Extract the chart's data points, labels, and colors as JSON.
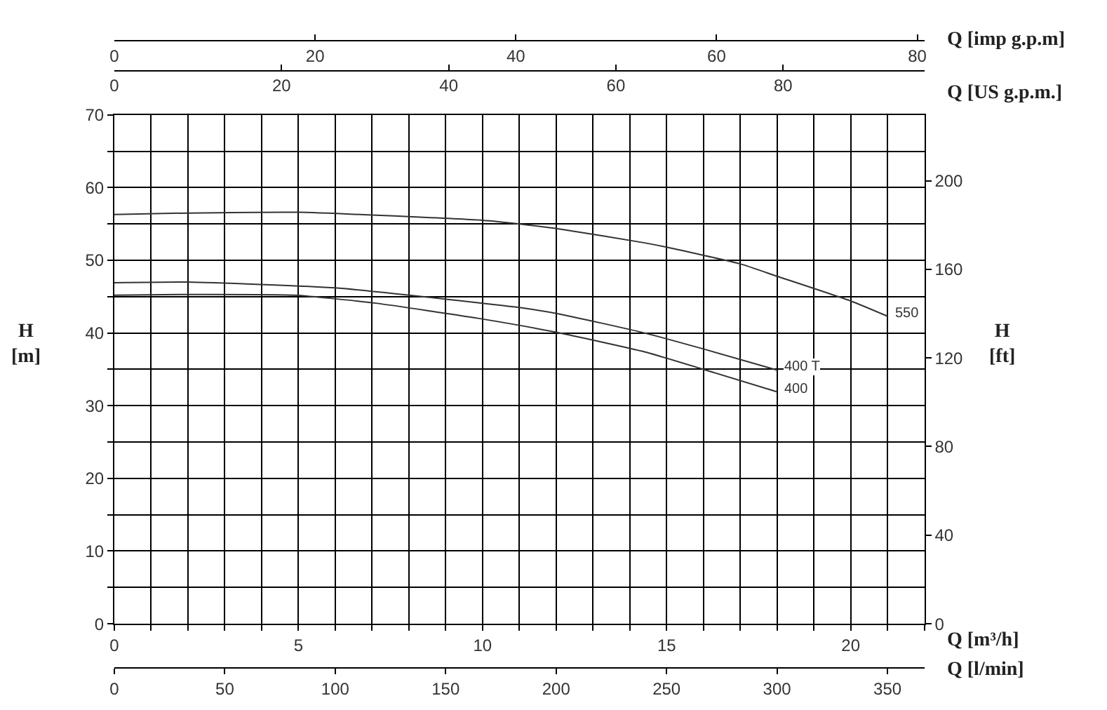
{
  "chart_data": [
    {
      "type": "line",
      "xlabel": "Q [m³/h]",
      "x2label": "Q [US g.p.m.]",
      "ylabel": "H\n[m]",
      "y2label": "H\n[ft]",
      "xlim": [
        0,
        22
      ],
      "xticks": [
        0,
        {
          "value": 1,
          "label": null
        },
        {
          "value": 2,
          "label": null
        },
        {
          "value": 3,
          "label": null
        },
        {
          "value": 4,
          "label": null
        },
        5,
        {
          "value": 6,
          "label": null
        },
        {
          "value": 7,
          "label": null
        },
        {
          "value": 8,
          "label": null
        },
        {
          "value": 9,
          "label": null
        },
        10,
        {
          "value": 11,
          "label": null
        },
        {
          "value": 12,
          "label": null
        },
        {
          "value": 13,
          "label": null
        },
        {
          "value": 14,
          "label": null
        },
        15,
        {
          "value": 16,
          "label": null
        },
        {
          "value": 17,
          "label": null
        },
        {
          "value": 18,
          "label": null
        },
        {
          "value": 19,
          "label": null
        },
        20,
        {
          "value": 21,
          "label": null
        },
        {
          "value": 22,
          "label": null
        }
      ],
      "x2lim": [
        0,
        96.9
      ],
      "x2ticks": [
        0,
        20,
        40,
        60,
        80
      ],
      "ylim": [
        0,
        70
      ],
      "yticks": [
        0,
        {
          "value": 5,
          "label": null
        },
        10,
        {
          "value": 15,
          "label": null
        },
        20,
        {
          "value": 25,
          "label": null
        },
        30,
        {
          "value": 35,
          "label": null
        },
        40,
        {
          "value": 45,
          "label": null
        },
        50,
        {
          "value": 55,
          "label": null
        },
        60,
        {
          "value": 65,
          "label": null
        },
        70
      ],
      "y2lim": [
        0,
        229.7
      ],
      "y2ticks": [
        0,
        40,
        80,
        120,
        160,
        200
      ],
      "grid": true,
      "line_style": "solid",
      "series": [
        {
          "name": "550",
          "color": "#333333",
          "x": [
            0,
            2,
            5,
            8,
            10,
            11,
            12.1,
            14.4,
            15,
            17,
            18,
            20,
            21
          ],
          "values": [
            56.3,
            56.5,
            56.6,
            56.0,
            55.5,
            55.0,
            54.3,
            52.4,
            51.8,
            49.5,
            47.8,
            44.4,
            42.3
          ]
        },
        {
          "name": "400 T",
          "color": "#333333",
          "x": [
            0,
            2,
            6,
            9.1,
            11,
            12.1,
            14.4,
            16,
            18
          ],
          "values": [
            46.9,
            47.0,
            46.2,
            44.6,
            43.5,
            42.6,
            40.0,
            37.8,
            34.9
          ]
        },
        {
          "name": "400",
          "color": "#333333",
          "x": [
            0,
            2,
            4.9,
            7.1,
            9.9,
            12,
            14.4,
            16,
            18
          ],
          "values": [
            45.2,
            45.3,
            45.2,
            44.1,
            42.0,
            40.1,
            37.4,
            35.0,
            31.9
          ]
        }
      ]
    },
    {
      "type": "line",
      "xlabel": "Q [l/min]",
      "x2label": "Q [imp g.p.m]",
      "xlim": [
        0,
        366.7
      ],
      "xticks": [
        0,
        50,
        100,
        150,
        200,
        250,
        300,
        350
      ],
      "x2lim": [
        0,
        80.7
      ],
      "x2ticks": [
        0,
        20,
        40,
        60,
        80
      ],
      "ylim": [
        0,
        70
      ],
      "tick_labels": "x"
    }
  ]
}
